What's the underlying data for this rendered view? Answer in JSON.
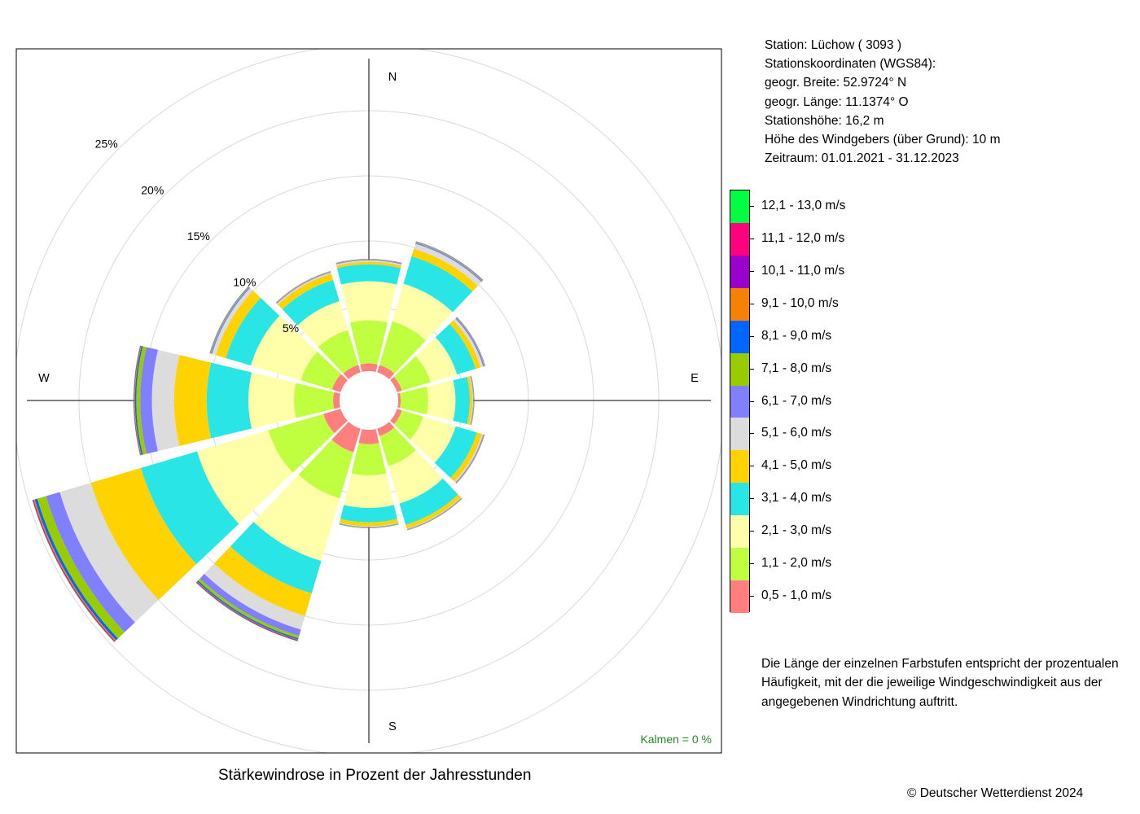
{
  "chart_data": {
    "type": "windrose",
    "title": "Stärkewindrose in Prozent der Jahresstunden",
    "directions_deg": [
      0,
      30,
      60,
      90,
      120,
      150,
      180,
      210,
      240,
      270,
      300,
      330
    ],
    "compass_labels": [
      "N",
      "E",
      "S",
      "W"
    ],
    "radial_ticks": [
      "5%",
      "10%",
      "15%",
      "20%",
      "25%"
    ],
    "radial_tick_values": [
      5,
      10,
      15,
      20,
      25
    ],
    "calm": "Kalmen  =  0 %",
    "classes": [
      {
        "label": "0,5 - 1,0 m/s",
        "color": "#FF7F7F"
      },
      {
        "label": "1,1 - 2,0 m/s",
        "color": "#BFFF3F"
      },
      {
        "label": "2,1 - 3,0 m/s",
        "color": "#FFFFAA"
      },
      {
        "label": "3,1 - 4,0 m/s",
        "color": "#2AE5E5"
      },
      {
        "label": "4,1 - 5,0 m/s",
        "color": "#FFD200"
      },
      {
        "label": "5,1 - 6,0 m/s",
        "color": "#DCDCDC"
      },
      {
        "label": "6,1 - 7,0 m/s",
        "color": "#8080FF"
      },
      {
        "label": "7,1 - 8,0 m/s",
        "color": "#99CC00"
      },
      {
        "label": "8,1 - 9,0 m/s",
        "color": "#0066FF"
      },
      {
        "label": "9,1 - 10,0 m/s",
        "color": "#F58205"
      },
      {
        "label": "10,1 - 11,0 m/s",
        "color": "#9900CC"
      },
      {
        "label": "11,1 - 12,0 m/s",
        "color": "#FF007F"
      },
      {
        "label": "12,1 - 13,0 m/s",
        "color": "#00FF40"
      }
    ],
    "cumulative_percent": [
      [
        0.6,
        3.9,
        6.9,
        8.2,
        8.4,
        8.5,
        8.55,
        8.57,
        8.58,
        8.59,
        8.6,
        8.61,
        8.62
      ],
      [
        0.6,
        4.1,
        7.1,
        9.3,
        9.9,
        10.3,
        10.4,
        10.45,
        10.47,
        10.48,
        10.49,
        10.5,
        10.51
      ],
      [
        0.4,
        2.7,
        4.8,
        6.3,
        6.7,
        6.9,
        7.0,
        7.03,
        7.04,
        7.05,
        7.06,
        7.07,
        7.08
      ],
      [
        0.2,
        2.3,
        4.4,
        5.5,
        5.7,
        5.75,
        5.78,
        5.8,
        5.81,
        5.82,
        5.83,
        5.84,
        5.85
      ],
      [
        0.4,
        2.1,
        4.7,
        6.4,
        6.8,
        6.9,
        6.95,
        6.97,
        6.98,
        6.99,
        7.0,
        7.01,
        7.02
      ],
      [
        0.6,
        3.0,
        6.0,
        7.7,
        8.0,
        8.05,
        8.08,
        8.1,
        8.11,
        8.12,
        8.13,
        8.14,
        8.15
      ],
      [
        1.1,
        3.5,
        6.0,
        7.1,
        7.4,
        7.45,
        7.48,
        7.5,
        7.51,
        7.52,
        7.53,
        7.54,
        7.55
      ],
      [
        1.9,
        5.6,
        10.6,
        13.2,
        15.0,
        16.1,
        16.6,
        16.8,
        16.9,
        16.95,
        17.0,
        17.02,
        17.04
      ],
      [
        1.4,
        5.8,
        11.5,
        16.0,
        20.0,
        22.5,
        23.6,
        24.3,
        24.5,
        24.6,
        24.65,
        24.68,
        24.7
      ],
      [
        0.5,
        3.5,
        7.0,
        10.2,
        12.7,
        14.4,
        15.3,
        15.6,
        15.7,
        15.75,
        15.78,
        15.8,
        15.82
      ],
      [
        0.7,
        3.2,
        7.2,
        9.2,
        10.0,
        10.3,
        10.4,
        10.45,
        10.47,
        10.48,
        10.49,
        10.5,
        10.51
      ],
      [
        0.6,
        3.4,
        5.7,
        7.4,
        7.9,
        8.0,
        8.05,
        8.07,
        8.08,
        8.09,
        8.1,
        8.11,
        8.12
      ]
    ]
  },
  "station": {
    "line1": "Station:  Lüchow  ( 3093 )",
    "line2": "Stationskoordinaten (WGS84):",
    "line3": "geogr. Breite: 52.9724° N",
    "line4": "geogr. Länge: 11.1374° O",
    "line5": "Stationshöhe: 16,2 m",
    "line6": "Höhe des Windgebers (über Grund): 10 m",
    "line7": "Zeitraum: 01.01.2021 - 31.12.2023"
  },
  "note": {
    "line1": "Die Länge der einzelnen Farbstufen entspricht der prozentualen",
    "line2": "Häufigkeit, mit der die jeweilige Windgeschwindigkeit aus der",
    "line3": "angegebenen Windrichtung auftritt."
  },
  "copyright": "© Deutscher Wetterdienst  2024"
}
